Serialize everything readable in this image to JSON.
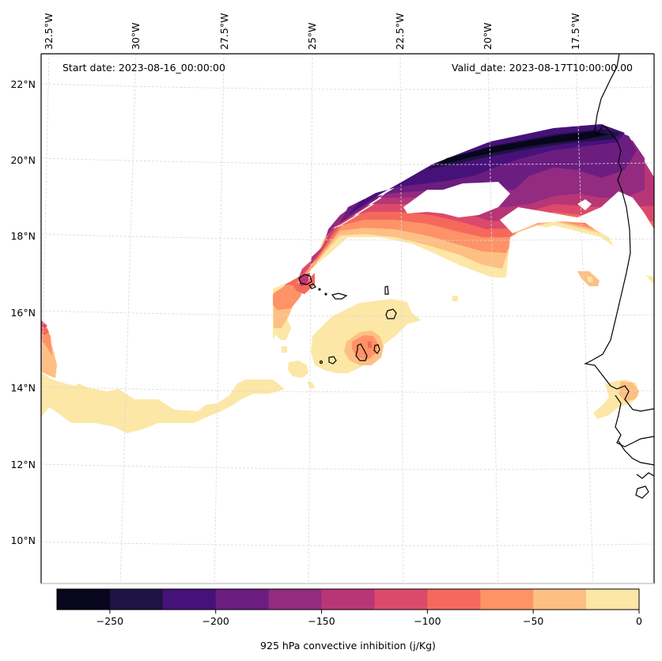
{
  "map": {
    "start_date_text": "Start date: 2023-08-16_00:00:00",
    "valid_date_text": "Valid_date: 2023-08-17T10:00:00.00",
    "lon_labels": [
      "32.5°W",
      "30°W",
      "27.5°W",
      "25°W",
      "22.5°W",
      "20°W",
      "17.5°W"
    ],
    "lat_labels": [
      "22°N",
      "20°N",
      "18°N",
      "16°N",
      "14°N",
      "12°N",
      "10°N"
    ],
    "field": "925 hPa convective inhibition",
    "regions": [
      {
        "name": "northern-band",
        "description": "arc of strong CIN from ~24.5°W,18°N to ~16.5°W,20.5°N",
        "min_value_band": "-275 to -250",
        "max_value_band": "-25 to 0"
      },
      {
        "name": "cape-verde-patch",
        "description": "weak CIN near Cape Verde islands, core near 23.5°W,15°N",
        "min_value_band": "-75 to -50",
        "max_value_band": "-25 to 0"
      },
      {
        "name": "southwest-band",
        "description": "weak CIN band along ~13.5°N from 32.5°W to 26°W",
        "min_value_band": "-125 to -100",
        "max_value_band": "-25 to 0"
      },
      {
        "name": "senegal-coast-patch",
        "description": "small patch near 16.8°W,13.8°N",
        "min_value_band": "-50 to -25",
        "max_value_band": "-25 to 0"
      }
    ]
  },
  "colorbar": {
    "label": "925 hPa convective inhibition (j/Kg)",
    "levels": [
      -275,
      -250,
      -225,
      -200,
      -175,
      -150,
      -125,
      -100,
      -75,
      -50,
      -25,
      0
    ],
    "tick_values": [
      -250,
      -200,
      -150,
      -100,
      -50,
      0
    ],
    "tick_labels": [
      "−250",
      "−200",
      "−150",
      "−100",
      "−50",
      "0"
    ],
    "colors": [
      "#07061c",
      "#1f1346",
      "#47117a",
      "#6c1d80",
      "#932b80",
      "#b93676",
      "#dc4a6b",
      "#f5695c",
      "#fd9366",
      "#febf84",
      "#fce7a6"
    ]
  }
}
